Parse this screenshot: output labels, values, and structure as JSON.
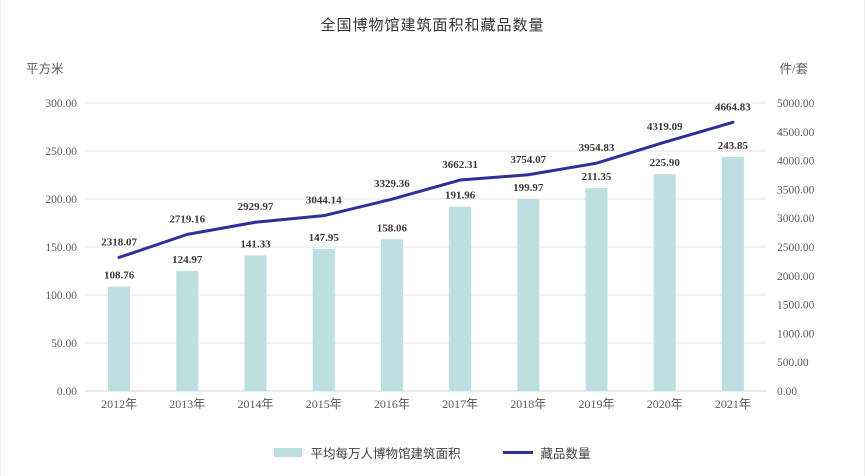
{
  "chart_data": {
    "type": "combo-bar-line",
    "title": "全国博物馆建筑面积和藏品数量",
    "categories": [
      "2012年",
      "2013年",
      "2014年",
      "2015年",
      "2016年",
      "2017年",
      "2018年",
      "2019年",
      "2020年",
      "2021年"
    ],
    "series": [
      {
        "name": "平均每万人博物馆建筑面积",
        "type": "bar",
        "axis": "left",
        "color": "#bcdfe2",
        "values": [
          108.76,
          124.97,
          141.33,
          147.95,
          158.06,
          191.96,
          199.97,
          211.35,
          225.9,
          243.85
        ]
      },
      {
        "name": "藏品数量",
        "type": "line",
        "axis": "right",
        "color": "#2f2f9c",
        "values": [
          2318.07,
          2719.16,
          2929.97,
          3044.14,
          3329.36,
          3662.31,
          3754.07,
          3954.83,
          4319.09,
          4664.83
        ]
      }
    ],
    "left_axis": {
      "unit": "平方米",
      "min": 0,
      "max": 300,
      "step": 50,
      "tick_labels": [
        "0.00",
        "50.00",
        "100.00",
        "150.00",
        "200.00",
        "250.00",
        "300.00"
      ]
    },
    "right_axis": {
      "unit": "件/套",
      "min": 0,
      "max": 5000,
      "step": 500,
      "tick_labels": [
        "0.00",
        "500.00",
        "1000.00",
        "1500.00",
        "2000.00",
        "2500.00",
        "3000.00",
        "3500.00",
        "4000.00",
        "4500.00",
        "5000.00"
      ]
    },
    "grid": true,
    "data_labels": true,
    "legend_position": "bottom",
    "colors": {
      "grid": "#e3e3e3",
      "axis_line": "#d6d6d6",
      "tick_text": "#595959",
      "data_label_text": "#3a3a3a",
      "title_text": "#333333"
    }
  }
}
